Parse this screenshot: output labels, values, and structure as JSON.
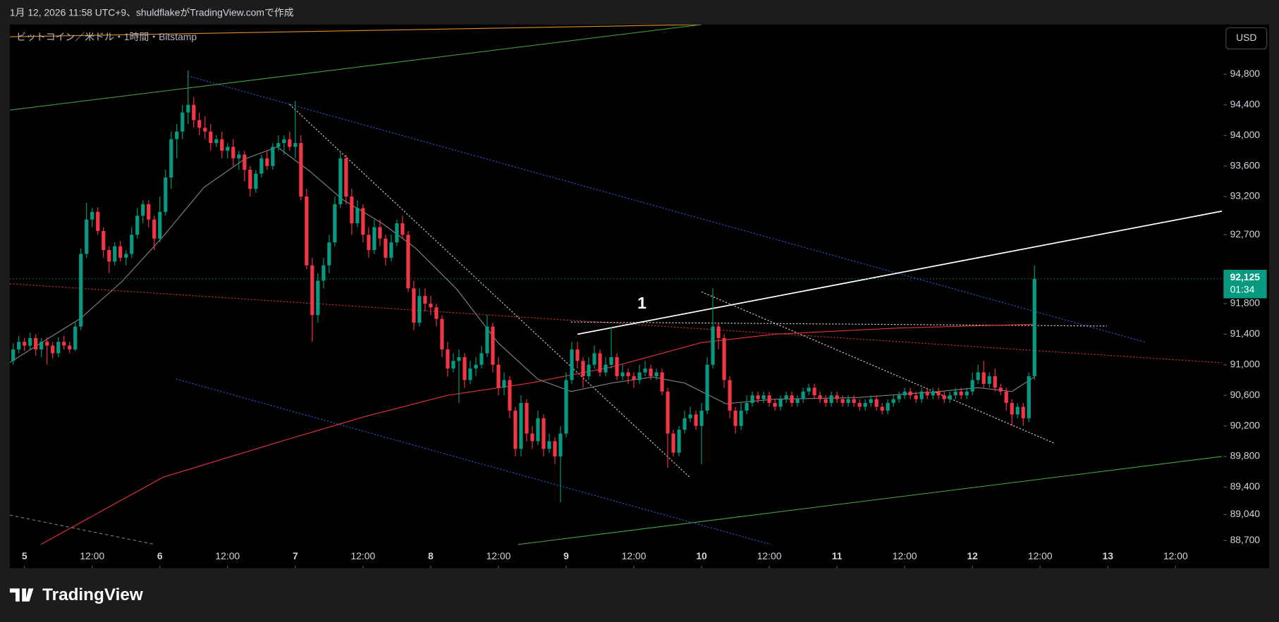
{
  "header": "1月 12, 2026 11:58 UTC+9、shuldflakeがTradingView.comで作成",
  "logo": "TradingView",
  "chart_data": {
    "type": "candlestick",
    "title": "ビットコイン／米ドル・1時間・Bitstamp",
    "currency": "USD",
    "annotation": "1",
    "up_color": "#089981",
    "down_color": "#f23645",
    "grid": false,
    "xlim": [
      -2.6,
      212.5
    ],
    "ylim": [
      88340,
      95450
    ],
    "xticks": [
      {
        "value": 0,
        "label": "5"
      },
      {
        "value": 12,
        "label": "12:00"
      },
      {
        "value": 24,
        "label": "6"
      },
      {
        "value": 36,
        "label": "12:00"
      },
      {
        "value": 48,
        "label": "7"
      },
      {
        "value": 60,
        "label": "12:00"
      },
      {
        "value": 72,
        "label": "8"
      },
      {
        "value": 84,
        "label": "12:00"
      },
      {
        "value": 96,
        "label": "9"
      },
      {
        "value": 108,
        "label": "12:00"
      },
      {
        "value": 120,
        "label": "10"
      },
      {
        "value": 132,
        "label": "12:00"
      },
      {
        "value": 144,
        "label": "11"
      },
      {
        "value": 156,
        "label": "12:00"
      },
      {
        "value": 168,
        "label": "12"
      },
      {
        "value": 180,
        "label": "12:00"
      },
      {
        "value": 192,
        "label": "13"
      },
      {
        "value": 204,
        "label": "12:00"
      }
    ],
    "yticks": [
      {
        "value": 94800,
        "label": "94,800"
      },
      {
        "value": 94400,
        "label": "94,400"
      },
      {
        "value": 94000,
        "label": "94,000"
      },
      {
        "value": 93600,
        "label": "93,600"
      },
      {
        "value": 93200,
        "label": "93,200"
      },
      {
        "value": 92700,
        "label": "92,700"
      },
      {
        "value": 91800,
        "label": "91,800"
      },
      {
        "value": 91400,
        "label": "91,400"
      },
      {
        "value": 91000,
        "label": "91,000"
      },
      {
        "value": 90600,
        "label": "90,600"
      },
      {
        "value": 90200,
        "label": "90,200"
      },
      {
        "value": 89800,
        "label": "89,800"
      },
      {
        "value": 89400,
        "label": "89,400"
      },
      {
        "value": 89040,
        "label": "89,040"
      },
      {
        "value": 88700,
        "label": "88,700"
      }
    ],
    "last_price": {
      "value": 92125,
      "label": "92,125"
    },
    "countdown": "01:34",
    "x": [
      -2,
      -1,
      0,
      1,
      2,
      3,
      4,
      5,
      6,
      7,
      8,
      9,
      10,
      11,
      12,
      13,
      14,
      15,
      16,
      17,
      18,
      19,
      20,
      21,
      22,
      23,
      24,
      25,
      26,
      27,
      28,
      29,
      30,
      31,
      32,
      33,
      34,
      35,
      36,
      37,
      38,
      39,
      40,
      41,
      42,
      43,
      44,
      45,
      46,
      47,
      48,
      49,
      50,
      51,
      52,
      53,
      54,
      55,
      56,
      57,
      58,
      59,
      60,
      61,
      62,
      63,
      64,
      65,
      66,
      67,
      68,
      69,
      70,
      71,
      72,
      73,
      74,
      75,
      76,
      77,
      78,
      79,
      80,
      81,
      82,
      83,
      84,
      85,
      86,
      87,
      88,
      89,
      90,
      91,
      92,
      93,
      94,
      95,
      96,
      97,
      98,
      99,
      100,
      101,
      102,
      103,
      104,
      105,
      106,
      107,
      108,
      109,
      110,
      111,
      112,
      113,
      114,
      115,
      116,
      117,
      118,
      119,
      120,
      121,
      122,
      123,
      124,
      125,
      126,
      127,
      128,
      129,
      130,
      131,
      132,
      133,
      134,
      135,
      136,
      137,
      138,
      139,
      140,
      141,
      142,
      143,
      144,
      145,
      146,
      147,
      148,
      149,
      150,
      151,
      152,
      153,
      154,
      155,
      156,
      157,
      158,
      159,
      160,
      161,
      162,
      163,
      164,
      165,
      166,
      167,
      168,
      169,
      170,
      171,
      172,
      173,
      174,
      175,
      176,
      177,
      178,
      179
    ],
    "values": [
      [
        91050,
        91280,
        91000,
        91200
      ],
      [
        91200,
        91380,
        91150,
        91300
      ],
      [
        91300,
        91350,
        91180,
        91250
      ],
      [
        91250,
        91420,
        91200,
        91350
      ],
      [
        91350,
        91400,
        91120,
        91200
      ],
      [
        91200,
        91350,
        91100,
        91300
      ],
      [
        91300,
        91360,
        91000,
        91250
      ],
      [
        91250,
        91300,
        91080,
        91150
      ],
      [
        91150,
        91360,
        91100,
        91300
      ],
      [
        91300,
        91380,
        91200,
        91250
      ],
      [
        91250,
        91300,
        91150,
        91200
      ],
      [
        91200,
        91560,
        91180,
        91500
      ],
      [
        91500,
        92520,
        91450,
        92450
      ],
      [
        92450,
        93120,
        92400,
        92900
      ],
      [
        92900,
        93050,
        92800,
        93000
      ],
      [
        93000,
        93060,
        92700,
        92750
      ],
      [
        92750,
        92800,
        92400,
        92500
      ],
      [
        92500,
        92550,
        92200,
        92350
      ],
      [
        92350,
        92600,
        92300,
        92550
      ],
      [
        92550,
        92620,
        92350,
        92400
      ],
      [
        92400,
        92500,
        92300,
        92450
      ],
      [
        92450,
        92800,
        92400,
        92700
      ],
      [
        92700,
        93050,
        92650,
        92950
      ],
      [
        92950,
        93150,
        92850,
        93100
      ],
      [
        93100,
        93150,
        92800,
        92900
      ],
      [
        92900,
        92950,
        92500,
        92650
      ],
      [
        92650,
        93200,
        92600,
        93000
      ],
      [
        93000,
        93550,
        92950,
        93450
      ],
      [
        93450,
        94050,
        93300,
        93950
      ],
      [
        93950,
        94150,
        93700,
        94050
      ],
      [
        94050,
        94400,
        93950,
        94300
      ],
      [
        94300,
        94850,
        94150,
        94400
      ],
      [
        94400,
        94500,
        94100,
        94200
      ],
      [
        94200,
        94300,
        94000,
        94100
      ],
      [
        94100,
        94250,
        93950,
        94050
      ],
      [
        94050,
        94150,
        93800,
        93900
      ],
      [
        93900,
        94000,
        93850,
        93950
      ],
      [
        93950,
        94050,
        93700,
        93800
      ],
      [
        93800,
        93900,
        93700,
        93850
      ],
      [
        93850,
        93950,
        93600,
        93700
      ],
      [
        93700,
        93800,
        93550,
        93750
      ],
      [
        93750,
        93800,
        93400,
        93550
      ],
      [
        93550,
        93600,
        93200,
        93300
      ],
      [
        93300,
        93550,
        93250,
        93500
      ],
      [
        93500,
        93750,
        93450,
        93700
      ],
      [
        93700,
        93800,
        93550,
        93600
      ],
      [
        93600,
        93900,
        93550,
        93850
      ],
      [
        93850,
        94000,
        93800,
        93900
      ],
      [
        93900,
        94000,
        93750,
        93950
      ],
      [
        93950,
        94050,
        93800,
        93850
      ],
      [
        93850,
        94450,
        93700,
        93900
      ],
      [
        93900,
        94000,
        93150,
        93200
      ],
      [
        93200,
        93300,
        92250,
        92300
      ],
      [
        92300,
        92400,
        91300,
        91650
      ],
      [
        91650,
        92200,
        91550,
        92100
      ],
      [
        92100,
        92400,
        92000,
        92300
      ],
      [
        92300,
        92700,
        92200,
        92600
      ],
      [
        92600,
        93200,
        92550,
        93100
      ],
      [
        93100,
        93800,
        93050,
        93700
      ],
      [
        93700,
        93750,
        93100,
        93200
      ],
      [
        93200,
        93300,
        92700,
        92850
      ],
      [
        92850,
        93150,
        92800,
        93050
      ],
      [
        93050,
        93100,
        92600,
        92700
      ],
      [
        92700,
        92800,
        92400,
        92500
      ],
      [
        92500,
        92900,
        92450,
        92800
      ],
      [
        92800,
        92900,
        92550,
        92650
      ],
      [
        92650,
        92700,
        92300,
        92400
      ],
      [
        92400,
        92700,
        92350,
        92600
      ],
      [
        92600,
        92900,
        92550,
        92850
      ],
      [
        92850,
        92950,
        92650,
        92700
      ],
      [
        92700,
        92750,
        91950,
        92000
      ],
      [
        92000,
        92100,
        91450,
        91550
      ],
      [
        91550,
        92000,
        91500,
        91900
      ],
      [
        91900,
        92000,
        91700,
        91800
      ],
      [
        91800,
        91900,
        91650,
        91750
      ],
      [
        91750,
        91800,
        91500,
        91600
      ],
      [
        91600,
        91650,
        91100,
        91200
      ],
      [
        91200,
        91300,
        90850,
        90950
      ],
      [
        90950,
        91150,
        90900,
        91050
      ],
      [
        91050,
        91200,
        90500,
        91100
      ],
      [
        91100,
        91150,
        90700,
        90800
      ],
      [
        90800,
        91050,
        90750,
        90950
      ],
      [
        90950,
        91100,
        90850,
        91000
      ],
      [
        91000,
        91250,
        90950,
        91150
      ],
      [
        91150,
        91650,
        91100,
        91500
      ],
      [
        91500,
        91550,
        90900,
        91000
      ],
      [
        91000,
        91100,
        90600,
        90700
      ],
      [
        90700,
        90900,
        90600,
        90800
      ],
      [
        90800,
        90850,
        90300,
        90400
      ],
      [
        90400,
        90450,
        89800,
        89900
      ],
      [
        89900,
        90600,
        89800,
        90500
      ],
      [
        90500,
        90550,
        90000,
        90100
      ],
      [
        90100,
        90200,
        89900,
        90000
      ],
      [
        90000,
        90400,
        89950,
        90300
      ],
      [
        90300,
        90350,
        89800,
        89900
      ],
      [
        89900,
        90100,
        89850,
        90000
      ],
      [
        90000,
        90050,
        89700,
        89800
      ],
      [
        89800,
        90200,
        89200,
        90100
      ],
      [
        90100,
        90900,
        90050,
        90800
      ],
      [
        90800,
        91300,
        90750,
        91200
      ],
      [
        91200,
        91300,
        90950,
        91050
      ],
      [
        91050,
        91100,
        90700,
        90850
      ],
      [
        90850,
        91100,
        90800,
        91000
      ],
      [
        91000,
        91250,
        90950,
        91150
      ],
      [
        91150,
        91200,
        90850,
        90900
      ],
      [
        90900,
        91100,
        90850,
        91000
      ],
      [
        91000,
        91500,
        90950,
        91100
      ],
      [
        91100,
        91150,
        90800,
        90850
      ],
      [
        90850,
        91000,
        90800,
        90900
      ],
      [
        90900,
        90950,
        90750,
        90850
      ],
      [
        90850,
        90900,
        90700,
        90800
      ],
      [
        90800,
        91000,
        90750,
        90900
      ],
      [
        90900,
        91050,
        90850,
        90950
      ],
      [
        90950,
        91000,
        90800,
        90850
      ],
      [
        90850,
        90950,
        90800,
        90900
      ],
      [
        90900,
        90950,
        90600,
        90650
      ],
      [
        90650,
        90700,
        89650,
        90100
      ],
      [
        90100,
        90150,
        89800,
        89850
      ],
      [
        89850,
        90200,
        89800,
        90150
      ],
      [
        90150,
        90400,
        90100,
        90300
      ],
      [
        90300,
        90450,
        90250,
        90350
      ],
      [
        90350,
        90400,
        90150,
        90200
      ],
      [
        90200,
        90500,
        89700,
        90400
      ],
      [
        90400,
        91100,
        90350,
        91000
      ],
      [
        91000,
        92000,
        90950,
        91500
      ],
      [
        91500,
        91550,
        91200,
        91350
      ],
      [
        91350,
        91400,
        90700,
        90800
      ],
      [
        90800,
        90850,
        90300,
        90400
      ],
      [
        90400,
        90450,
        90100,
        90200
      ],
      [
        90200,
        90500,
        90150,
        90400
      ],
      [
        90400,
        90600,
        90350,
        90500
      ],
      [
        90500,
        90650,
        90450,
        90600
      ],
      [
        90600,
        90650,
        90500,
        90550
      ],
      [
        90550,
        90650,
        90500,
        90600
      ],
      [
        90600,
        90650,
        90450,
        90500
      ],
      [
        90500,
        90550,
        90400,
        90450
      ],
      [
        90450,
        90600,
        90400,
        90550
      ],
      [
        90550,
        90650,
        90500,
        90600
      ],
      [
        90600,
        90650,
        90450,
        90500
      ],
      [
        90500,
        90600,
        90450,
        90550
      ],
      [
        90550,
        90700,
        90500,
        90650
      ],
      [
        90650,
        90750,
        90600,
        90700
      ],
      [
        90700,
        90750,
        90550,
        90600
      ],
      [
        90600,
        90650,
        90500,
        90550
      ],
      [
        90550,
        90600,
        90450,
        90500
      ],
      [
        90500,
        90650,
        90450,
        90600
      ],
      [
        90600,
        90650,
        90500,
        90550
      ],
      [
        90550,
        90600,
        90450,
        90500
      ],
      [
        90500,
        90600,
        90450,
        90550
      ],
      [
        90550,
        90600,
        90450,
        90500
      ],
      [
        90500,
        90550,
        90400,
        90450
      ],
      [
        90450,
        90550,
        90400,
        90500
      ],
      [
        90500,
        90600,
        90450,
        90550
      ],
      [
        90550,
        90600,
        90400,
        90450
      ],
      [
        90450,
        90500,
        90350,
        90400
      ],
      [
        90400,
        90550,
        90350,
        90500
      ],
      [
        90500,
        90600,
        90450,
        90550
      ],
      [
        90550,
        90650,
        90500,
        90600
      ],
      [
        90600,
        90700,
        90550,
        90650
      ],
      [
        90650,
        90700,
        90550,
        90600
      ],
      [
        90600,
        90650,
        90500,
        90550
      ],
      [
        90550,
        90700,
        90500,
        90650
      ],
      [
        90650,
        90700,
        90550,
        90600
      ],
      [
        90600,
        90700,
        90550,
        90650
      ],
      [
        90650,
        90700,
        90550,
        90600
      ],
      [
        90600,
        90650,
        90500,
        90550
      ],
      [
        90550,
        90650,
        90500,
        90600
      ],
      [
        90600,
        90700,
        90550,
        90650
      ],
      [
        90650,
        90700,
        90550,
        90600
      ],
      [
        90600,
        90700,
        90550,
        90650
      ],
      [
        90650,
        90900,
        90600,
        90800
      ],
      [
        90800,
        91000,
        90750,
        90900
      ],
      [
        90900,
        91050,
        90700,
        90750
      ],
      [
        90750,
        90900,
        90700,
        90850
      ],
      [
        90850,
        90950,
        90650,
        90700
      ],
      [
        90700,
        90750,
        90600,
        90650
      ],
      [
        90650,
        90700,
        90400,
        90500
      ],
      [
        90500,
        90550,
        90200,
        90350
      ],
      [
        90350,
        90500,
        90300,
        90450
      ],
      [
        90450,
        90500,
        90200,
        90300
      ],
      [
        90300,
        90900,
        90250,
        90850
      ],
      [
        90850,
        92300,
        90800,
        92125
      ]
    ],
    "lines": [
      {
        "color": "#e0323c",
        "x": [
          2.9,
          24.6,
          46,
          60.7,
          75,
          89.6,
          104,
          120,
          133,
          154.7,
          179
        ],
        "values": [
          88650,
          89530,
          90010,
          90330,
          90600,
          90760,
          90970,
          91290,
          91400,
          91480,
          91530
        ]
      },
      {
        "color": "#808080",
        "x": [
          -2.6,
          10,
          17.3,
          24.6,
          31.8,
          39,
          44.8,
          50.6,
          56.4,
          63.6,
          69.4,
          76.6,
          83.9,
          91,
          96.9,
          104,
          111.3,
          117,
          124.3,
          133,
          147.5,
          162,
          169,
          175,
          179
        ],
        "values": [
          91030,
          91610,
          92090,
          92680,
          93320,
          93690,
          93850,
          93530,
          93160,
          92840,
          92520,
          91990,
          91290,
          90810,
          90650,
          90760,
          90840,
          90760,
          90490,
          90550,
          90570,
          90650,
          90700,
          90650,
          90840
        ]
      }
    ]
  }
}
